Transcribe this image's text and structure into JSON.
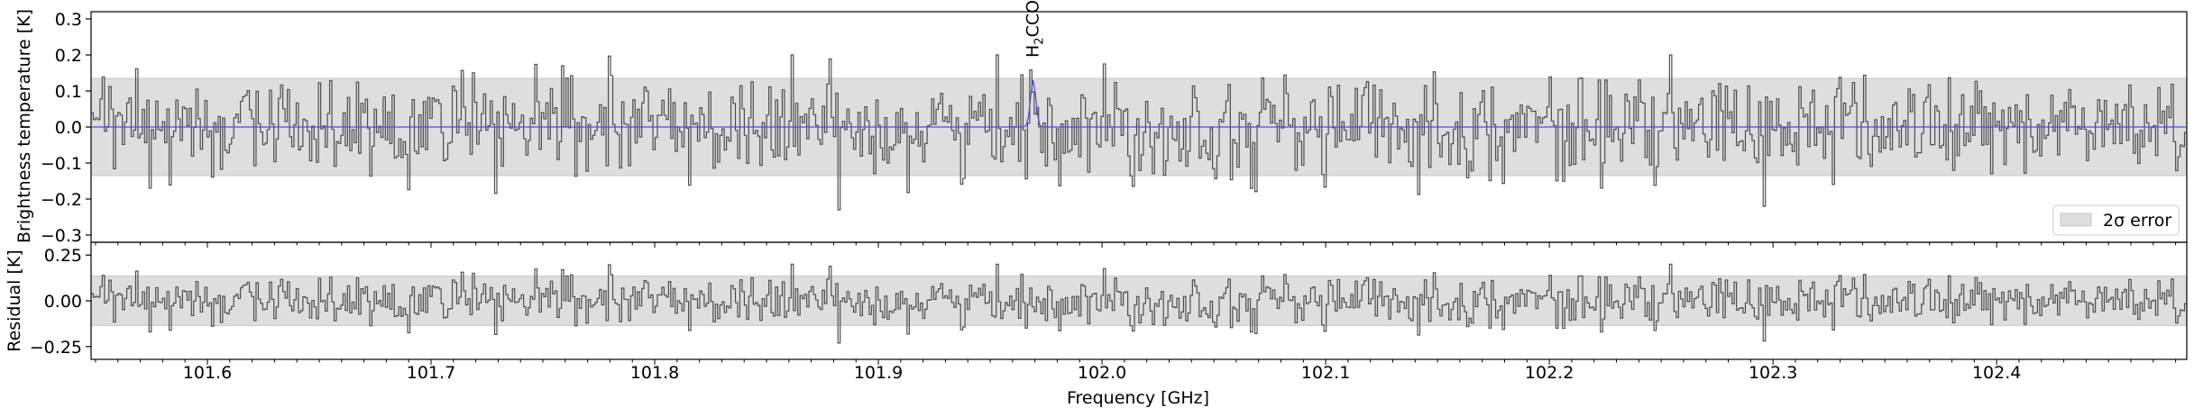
{
  "chart_data": [
    {
      "type": "line",
      "panel": "spectrum",
      "xlabel": "",
      "ylabel": "Brightness temperature [K]",
      "xlim": [
        101.548,
        102.485
      ],
      "ylim": [
        -0.32,
        0.32
      ],
      "yticks": [
        -0.3,
        -0.2,
        -0.1,
        0.0,
        0.1,
        0.2,
        0.3
      ],
      "ytick_labels": [
        "−0.3",
        "−0.2",
        "−0.1",
        "0.0",
        "0.1",
        "0.2",
        "0.3"
      ],
      "error_band": [
        -0.135,
        0.135
      ],
      "grid": false,
      "legend": {
        "placement": "lower-right",
        "entries": [
          "2σ error"
        ]
      },
      "series": [
        {
          "style": "steps",
          "color": "#4d4d4d",
          "noise_sigma": 0.07,
          "channels": 940
        },
        {
          "style": "line",
          "color": "#4a4af0",
          "model": "gaussian",
          "center": 101.9692,
          "peak": 0.13,
          "width": 0.0012
        }
      ],
      "annotations": [
        {
          "text_html": "H<tspan font-size='13' dy='5'>2</tspan><tspan dy='-5'>CCO</tspan>",
          "label": "H2CCO",
          "x": 101.9692,
          "orientation": "vertical"
        }
      ]
    },
    {
      "type": "line",
      "panel": "residual",
      "xlabel": "Frequency [GHz]",
      "ylabel": "Residual [K]",
      "xlim": [
        101.548,
        102.485
      ],
      "ylim": [
        -0.32,
        0.32
      ],
      "yticks": [
        -0.25,
        0.0,
        0.25
      ],
      "ytick_labels": [
        "−0.25",
        "0.00",
        "0.25"
      ],
      "xticks": [
        101.6,
        101.7,
        101.8,
        101.9,
        102.0,
        102.1,
        102.2,
        102.3,
        102.4
      ],
      "xtick_labels": [
        "101.6",
        "101.7",
        "101.8",
        "101.9",
        "102.0",
        "102.1",
        "102.2",
        "102.3",
        "102.4"
      ],
      "error_band": [
        -0.135,
        0.135
      ],
      "grid": false,
      "series": [
        {
          "style": "steps",
          "color": "#4d4d4d",
          "noise_sigma": 0.07,
          "channels": 940
        }
      ]
    }
  ],
  "colors": {
    "spectrum": "#4d4d4d",
    "model": "#4a4af0",
    "band": "#dedede",
    "band_edge": "#c8c8c8",
    "axes": "#000000"
  }
}
